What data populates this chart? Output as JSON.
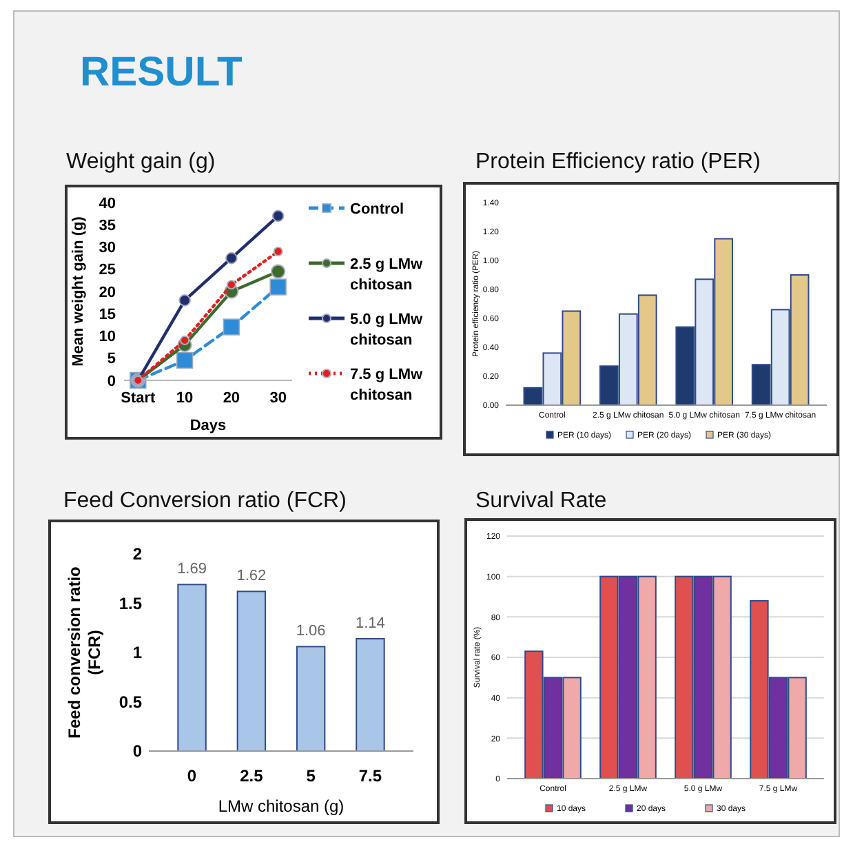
{
  "chart_data": [
    {
      "type": "other",
      "title": "RESULT"
    },
    {
      "type": "line",
      "title": "Weight gain (g)",
      "xlabel": "Days",
      "ylabel": "Mean weight gain (g)",
      "categories": [
        "Start",
        "10",
        "20",
        "30"
      ],
      "ylim": [
        0,
        40
      ],
      "yticks": [
        0,
        5,
        10,
        15,
        20,
        25,
        30,
        35,
        40
      ],
      "grid": false,
      "legend": "right",
      "series": [
        {
          "name": "Control",
          "color": "#2e8bd8",
          "values": [
            0,
            4.5,
            12,
            21
          ],
          "marker": "square",
          "line_style": "dashed"
        },
        {
          "name": "2.5 g LMw chitosan",
          "color": "#3c6b2c",
          "values": [
            0,
            8,
            20,
            24.5
          ],
          "marker": "circle",
          "line_style": "solid"
        },
        {
          "name": "5.0 g LMw chitosan",
          "color": "#1f2f6e",
          "values": [
            0,
            18,
            27.5,
            37
          ],
          "marker": "circle",
          "line_style": "solid"
        },
        {
          "name": "7.5 g LMw chitosan",
          "color": "#e02020",
          "values": [
            0,
            9,
            21.5,
            29
          ],
          "marker": "circle",
          "line_style": "dotted"
        }
      ]
    },
    {
      "type": "bar",
      "title": "Protein Efficiency ratio (PER)",
      "ylabel": "Protein efficiency ratio (PER)",
      "categories": [
        "Control",
        "2.5 g LMw chitosan",
        "5.0 g LMw chitosan",
        "7.5 g LMw chitosan"
      ],
      "ylim": [
        0,
        1.4
      ],
      "yticks": [
        {
          "value": 0,
          "label": "0.00"
        },
        {
          "value": 0.2,
          "label": "0.20"
        },
        {
          "value": 0.4,
          "label": "0.40"
        },
        {
          "value": 0.6,
          "label": "0.60"
        },
        {
          "value": 0.8,
          "label": "0.80"
        },
        {
          "value": 1.0,
          "label": "1.00"
        },
        {
          "value": 1.2,
          "label": "1.20"
        },
        {
          "value": 1.4,
          "label": "1.40"
        }
      ],
      "grid": false,
      "legend": "bottom",
      "series": [
        {
          "name": "PER (10 days)",
          "color": "#1f3a6e",
          "values": [
            0.12,
            0.27,
            0.54,
            0.28
          ]
        },
        {
          "name": "PER (20 days)",
          "color": "#dce6f4",
          "values": [
            0.36,
            0.63,
            0.87,
            0.66
          ]
        },
        {
          "name": "PER (30 days)",
          "color": "#e3c88a",
          "values": [
            0.65,
            0.76,
            1.15,
            0.9
          ]
        }
      ]
    },
    {
      "type": "bar",
      "title": "Feed Conversion ratio (FCR)",
      "xlabel": "LMw chitosan (g)",
      "ylabel": "Feed conversion ratio (FCR)",
      "categories": [
        "0",
        "2.5",
        "5",
        "7.5"
      ],
      "ylim": [
        0,
        2
      ],
      "yticks": [
        0,
        0.5,
        1,
        1.5,
        2
      ],
      "grid": false,
      "data_labels": true,
      "series": [
        {
          "color": "#a9c6e8",
          "values": [
            1.69,
            1.62,
            1.06,
            1.14
          ]
        }
      ]
    },
    {
      "type": "bar",
      "title": "Survival Rate",
      "ylabel": "Survival rate (%)",
      "categories": [
        "Control",
        "2.5 g LMw",
        "5.0 g LMw",
        "7.5 g LMw"
      ],
      "ylim": [
        0,
        120
      ],
      "yticks": [
        0,
        20,
        40,
        60,
        80,
        100,
        120
      ],
      "grid": "y",
      "legend": "bottom",
      "series": [
        {
          "name": "10 days",
          "color": "#e05050",
          "values": [
            63,
            100,
            100,
            88
          ]
        },
        {
          "name": "20 days",
          "color": "#7030a0",
          "values": [
            50,
            100,
            100,
            50
          ]
        },
        {
          "name": "30 days",
          "color": "#f0a8a8",
          "values": [
            50,
            100,
            100,
            50
          ]
        }
      ]
    }
  ]
}
